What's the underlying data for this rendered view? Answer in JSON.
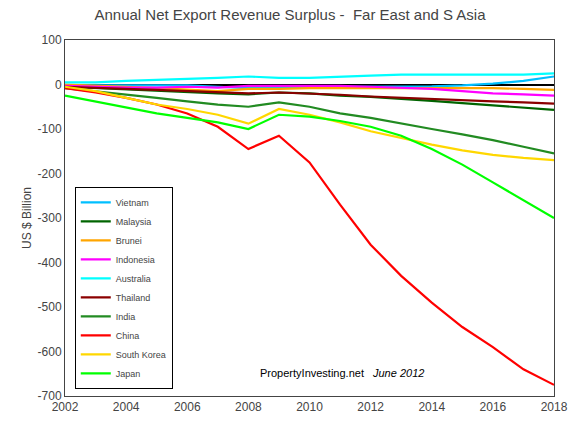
{
  "chart_data": {
    "type": "line",
    "title": "Annual Net Export Revenue Surplus -  Far East and S Asia",
    "ylabel": "US $ Billion",
    "annotations": [
      "PropertyInvesting.net",
      "June 2012"
    ],
    "x": [
      2002,
      2003,
      2004,
      2005,
      2006,
      2007,
      2008,
      2009,
      2010,
      2011,
      2012,
      2013,
      2014,
      2015,
      2016,
      2017,
      2018
    ],
    "series": [
      {
        "name": "Vietnam",
        "color": "#00BFFF",
        "values": [
          -2,
          -2,
          -3,
          -3,
          -2,
          -5,
          -8,
          -5,
          -7,
          -5,
          -5,
          -5,
          -4,
          -2,
          2,
          8,
          18
        ]
      },
      {
        "name": "Malaysia",
        "color": "#006400",
        "values": [
          -5,
          -8,
          -12,
          -15,
          -18,
          -20,
          -22,
          -18,
          -20,
          -25,
          -28,
          -32,
          -37,
          -42,
          -47,
          -52,
          -57
        ]
      },
      {
        "name": "Brunei",
        "color": "#FFA500",
        "values": [
          0,
          -2,
          -5,
          -8,
          -12,
          -15,
          -10,
          -10,
          -8,
          -8,
          -8,
          -8,
          -8,
          -8,
          -8,
          -10,
          -12
        ]
      },
      {
        "name": "Indonesia",
        "color": "#FF00FF",
        "values": [
          -3,
          -5,
          -7,
          -7,
          -5,
          -7,
          -3,
          -3,
          -3,
          -3,
          -5,
          -7,
          -10,
          -15,
          -20,
          -22,
          -25
        ]
      },
      {
        "name": "Australia",
        "color": "#00FFFF",
        "values": [
          5,
          5,
          8,
          10,
          12,
          15,
          18,
          15,
          15,
          18,
          20,
          22,
          22,
          22,
          22,
          22,
          25
        ]
      },
      {
        "name": "Thailand",
        "color": "#8B0000",
        "values": [
          -5,
          -8,
          -10,
          -12,
          -15,
          -18,
          -20,
          -18,
          -20,
          -23,
          -27,
          -30,
          -32,
          -35,
          -38,
          -40,
          -43
        ]
      },
      {
        "name": "India",
        "color": "#228B22",
        "values": [
          -8,
          -15,
          -22,
          -30,
          -38,
          -45,
          -50,
          -40,
          -50,
          -65,
          -75,
          -88,
          -100,
          -112,
          -125,
          -140,
          -155
        ]
      },
      {
        "name": "China",
        "color": "#FF0000",
        "values": [
          -8,
          -18,
          -30,
          -45,
          -65,
          -95,
          -145,
          -115,
          -175,
          -270,
          -360,
          -430,
          -490,
          -545,
          -590,
          -640,
          -675
        ]
      },
      {
        "name": "South Korea",
        "color": "#FFD700",
        "values": [
          -5,
          -15,
          -30,
          -45,
          -55,
          -68,
          -88,
          -55,
          -68,
          -85,
          -105,
          -120,
          -135,
          -148,
          -158,
          -165,
          -170
        ]
      },
      {
        "name": "Japan",
        "color": "#00FF00",
        "values": [
          -25,
          -38,
          -52,
          -65,
          -75,
          -85,
          -100,
          -68,
          -72,
          -82,
          -95,
          -115,
          -145,
          -180,
          -220,
          -260,
          -300
        ]
      }
    ],
    "xlim": [
      2002,
      2018
    ],
    "ylim": [
      -700,
      100
    ],
    "xticks": [
      2002,
      2004,
      2006,
      2008,
      2010,
      2012,
      2014,
      2016,
      2018
    ],
    "yticks": [
      100,
      0,
      -100,
      -200,
      -300,
      -400,
      -500,
      -600,
      -700
    ],
    "grid": false,
    "legend": "lower left"
  }
}
